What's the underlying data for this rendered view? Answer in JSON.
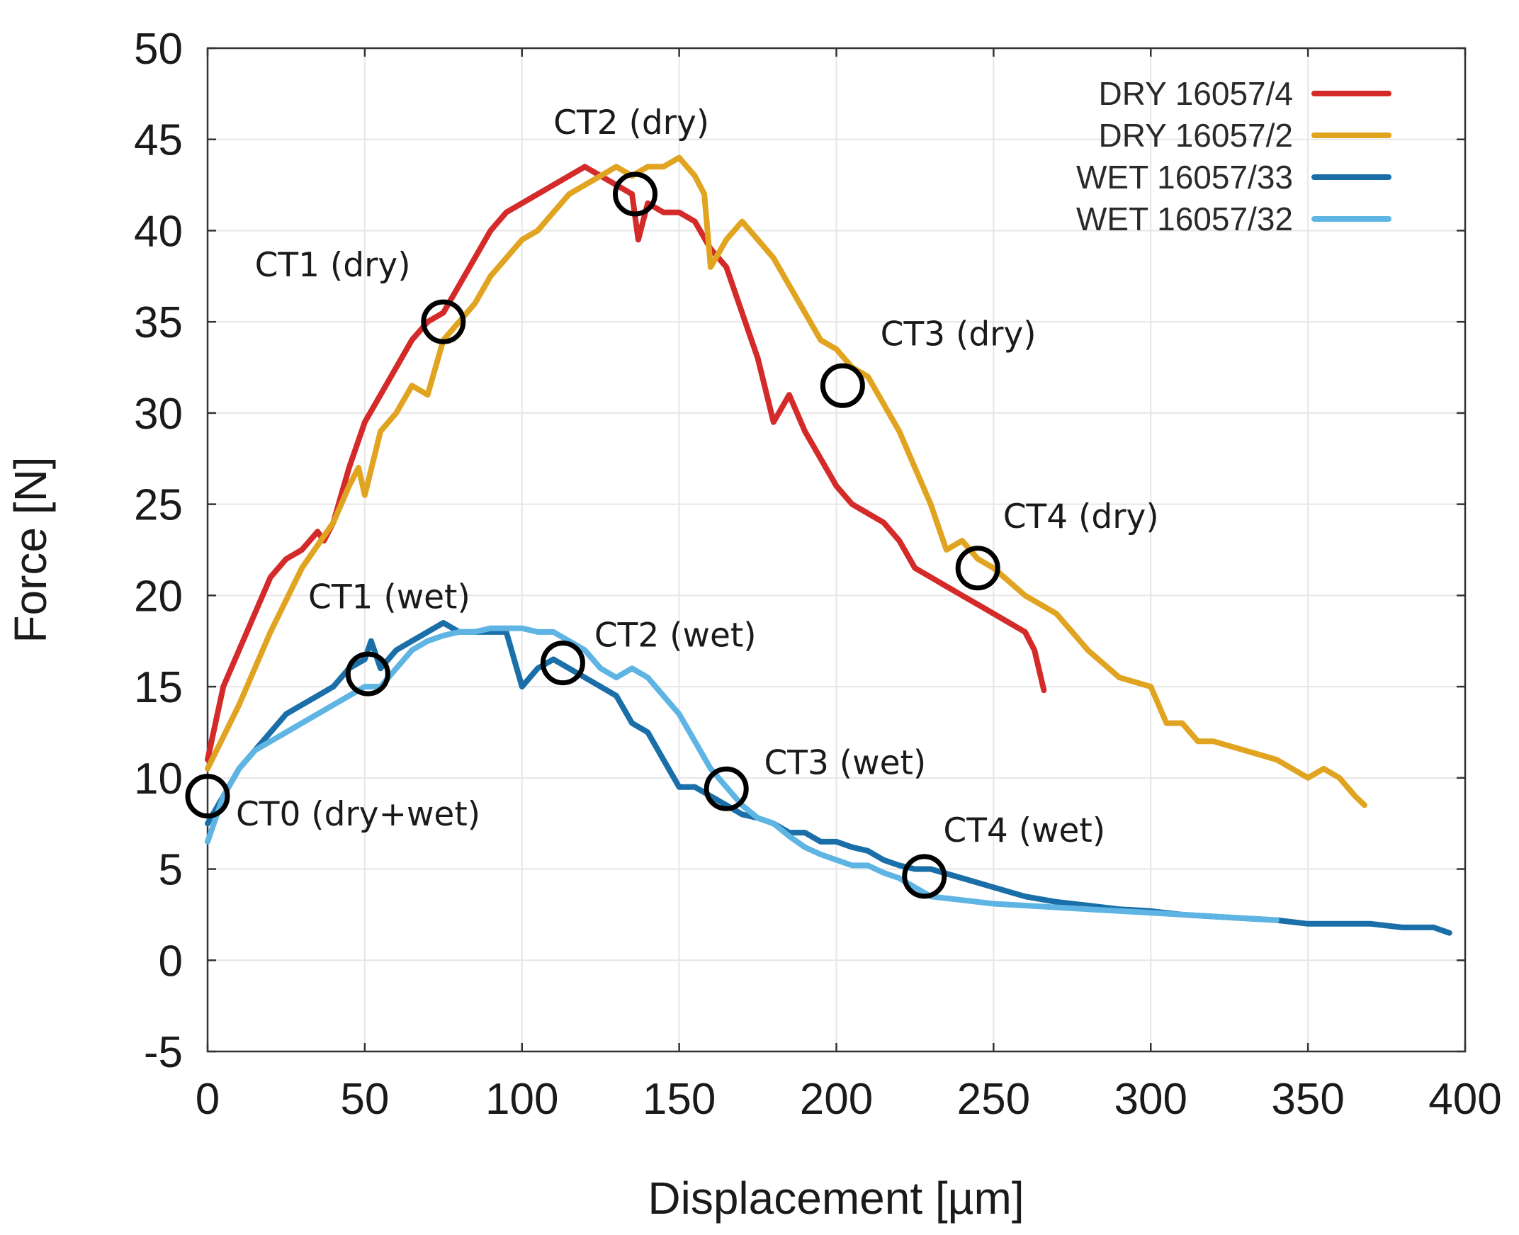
{
  "chart_data": {
    "type": "line",
    "title": "",
    "xlabel": "Displacement [µm]",
    "ylabel": "Force [N]",
    "xlim": [
      0,
      400
    ],
    "ylim": [
      -5,
      50
    ],
    "xticks": [
      0,
      50,
      100,
      150,
      200,
      250,
      300,
      350,
      400
    ],
    "yticks": [
      -5,
      0,
      5,
      10,
      15,
      20,
      25,
      30,
      35,
      40,
      45,
      50
    ],
    "grid": true,
    "legend_position": "top-right",
    "series": [
      {
        "name": "DRY 16057/4",
        "color": "#d42a2a",
        "x": [
          0,
          5,
          10,
          15,
          20,
          25,
          30,
          35,
          37,
          40,
          45,
          50,
          55,
          60,
          65,
          70,
          75,
          80,
          85,
          90,
          95,
          100,
          105,
          110,
          115,
          120,
          125,
          130,
          135,
          137,
          140,
          145,
          150,
          155,
          160,
          165,
          170,
          175,
          180,
          185,
          190,
          195,
          200,
          205,
          210,
          215,
          220,
          225,
          230,
          235,
          240,
          245,
          250,
          255,
          260,
          263,
          266
        ],
        "y": [
          11,
          15,
          17,
          19,
          21,
          22,
          22.5,
          23.5,
          23,
          24,
          27,
          29.5,
          31,
          32.5,
          34,
          35,
          35.5,
          37,
          38.5,
          40,
          41,
          41.5,
          42,
          42.5,
          43,
          43.5,
          43,
          42.5,
          42,
          39.5,
          41.5,
          41,
          41,
          40.5,
          39,
          38,
          35.5,
          33,
          29.5,
          31,
          29,
          27.5,
          26,
          25,
          24.5,
          24,
          23,
          21.5,
          21,
          20.5,
          20,
          19.5,
          19,
          18.5,
          18,
          17,
          14.8
        ]
      },
      {
        "name": "DRY 16057/2",
        "color": "#e0a420",
        "x": [
          0,
          10,
          20,
          30,
          40,
          45,
          48,
          50,
          55,
          60,
          65,
          70,
          75,
          80,
          85,
          90,
          95,
          100,
          105,
          110,
          115,
          120,
          125,
          130,
          135,
          140,
          145,
          150,
          155,
          158,
          160,
          165,
          170,
          175,
          180,
          185,
          190,
          195,
          200,
          205,
          210,
          215,
          220,
          225,
          230,
          235,
          240,
          245,
          250,
          260,
          270,
          280,
          290,
          300,
          305,
          310,
          315,
          320,
          330,
          340,
          350,
          355,
          360,
          365,
          368
        ],
        "y": [
          10.5,
          14,
          18,
          21.5,
          24,
          26,
          27,
          25.5,
          29,
          30,
          31.5,
          31,
          34,
          35,
          36,
          37.5,
          38.5,
          39.5,
          40,
          41,
          42,
          42.5,
          43,
          43.5,
          43,
          43.5,
          43.5,
          44,
          43,
          42,
          38,
          39.5,
          40.5,
          39.5,
          38.5,
          37,
          35.5,
          34,
          33.5,
          32.5,
          32,
          30.5,
          29,
          27,
          25,
          22.5,
          23,
          22,
          21.5,
          20,
          19,
          17,
          15.5,
          15,
          13,
          13,
          12,
          12,
          11.5,
          11,
          10,
          10.5,
          10,
          9,
          8.5
        ]
      },
      {
        "name": "WET 16057/33",
        "color": "#1a6fa8",
        "x": [
          0,
          5,
          10,
          15,
          20,
          25,
          30,
          35,
          40,
          45,
          50,
          52,
          55,
          60,
          65,
          70,
          75,
          80,
          85,
          90,
          95,
          100,
          105,
          110,
          115,
          120,
          125,
          130,
          135,
          140,
          145,
          150,
          155,
          160,
          165,
          170,
          175,
          180,
          185,
          190,
          195,
          200,
          205,
          210,
          215,
          220,
          225,
          230,
          240,
          250,
          260,
          270,
          280,
          290,
          300,
          310,
          320,
          330,
          340,
          350,
          360,
          370,
          380,
          390,
          395
        ],
        "y": [
          7.5,
          9,
          10.5,
          11.5,
          12.5,
          13.5,
          14,
          14.5,
          15,
          16,
          16.5,
          17.5,
          16,
          17,
          17.5,
          18,
          18.5,
          18,
          18,
          18,
          18,
          15,
          16,
          16.5,
          16,
          15.5,
          15,
          14.5,
          13,
          12.5,
          11,
          9.5,
          9.5,
          9,
          8.5,
          8,
          7.8,
          7.5,
          7,
          7,
          6.5,
          6.5,
          6.2,
          6,
          5.5,
          5.2,
          5,
          5,
          4.5,
          4,
          3.5,
          3.2,
          3,
          2.8,
          2.7,
          2.5,
          2.4,
          2.3,
          2.2,
          2,
          2,
          2,
          1.8,
          1.8,
          1.5
        ]
      },
      {
        "name": "WET 16057/32",
        "color": "#5eb5e3",
        "x": [
          0,
          5,
          10,
          15,
          20,
          25,
          30,
          35,
          40,
          45,
          50,
          55,
          60,
          65,
          70,
          75,
          80,
          85,
          90,
          95,
          100,
          105,
          110,
          115,
          120,
          125,
          130,
          135,
          140,
          145,
          150,
          155,
          160,
          165,
          170,
          175,
          180,
          185,
          190,
          195,
          200,
          205,
          210,
          215,
          220,
          225,
          230,
          240,
          250,
          260,
          270,
          280,
          290,
          300,
          310,
          320,
          330,
          340
        ],
        "y": [
          6.5,
          9,
          10.5,
          11.5,
          12,
          12.5,
          13,
          13.5,
          14,
          14.5,
          15,
          15,
          16,
          17,
          17.5,
          17.8,
          18,
          18,
          18.2,
          18.2,
          18.2,
          18,
          18,
          17.5,
          17,
          16,
          15.5,
          16,
          15.5,
          14.5,
          13.5,
          12,
          10.5,
          9.5,
          8.5,
          7.8,
          7.5,
          6.8,
          6.2,
          5.8,
          5.5,
          5.2,
          5.2,
          4.8,
          4.5,
          4,
          3.5,
          3.3,
          3.1,
          3,
          2.9,
          2.8,
          2.7,
          2.6,
          2.5,
          2.4,
          2.3,
          2.2
        ]
      }
    ],
    "annotations": [
      {
        "text": "CT0 (dry+wet)",
        "x": 0,
        "y": 9,
        "label_x": 9,
        "label_y": 7.4
      },
      {
        "text": "CT1 (dry)",
        "x": 75,
        "y": 35,
        "label_x": 15,
        "label_y": 37.5
      },
      {
        "text": "CT2 (dry)",
        "x": 136,
        "y": 42,
        "label_x": 110,
        "label_y": 45.3
      },
      {
        "text": "CT3 (dry)",
        "x": 202,
        "y": 31.5,
        "label_x": 214,
        "label_y": 33.7
      },
      {
        "text": "CT4 (dry)",
        "x": 245,
        "y": 21.5,
        "label_x": 253,
        "label_y": 23.7
      },
      {
        "text": "CT1 (wet)",
        "x": 51,
        "y": 15.7,
        "label_x": 32,
        "label_y": 19.3
      },
      {
        "text": "CT2 (wet)",
        "x": 113,
        "y": 16.3,
        "label_x": 123,
        "label_y": 17.2
      },
      {
        "text": "CT3 (wet)",
        "x": 165,
        "y": 9.4,
        "label_x": 177,
        "label_y": 10.2
      },
      {
        "text": "CT4 (wet)",
        "x": 228,
        "y": 4.6,
        "label_x": 234,
        "label_y": 6.5
      }
    ]
  }
}
